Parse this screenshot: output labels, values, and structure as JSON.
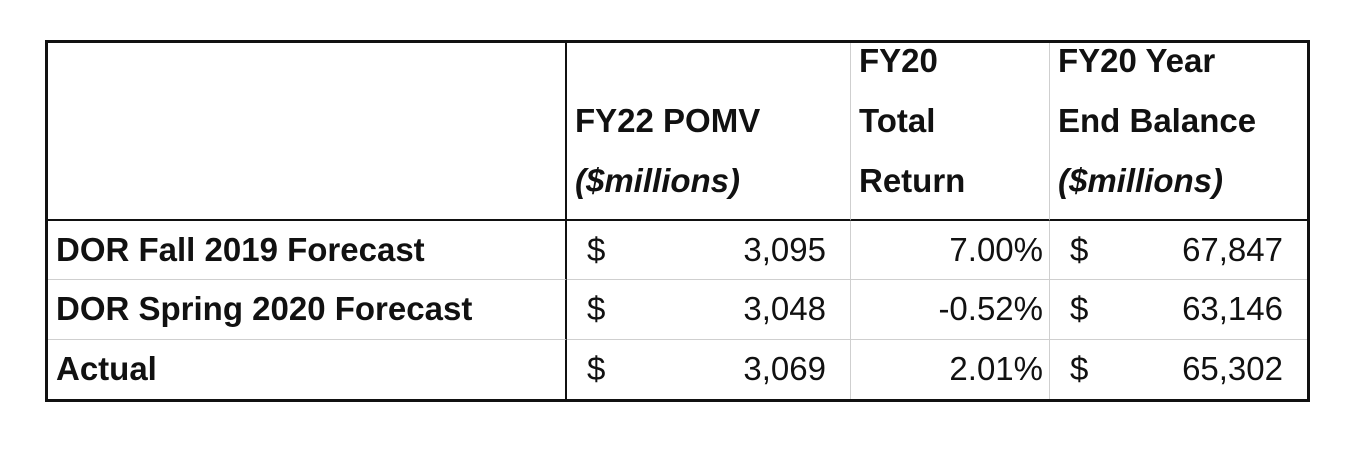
{
  "table": {
    "headers": {
      "col2_line1": "FY22 POMV",
      "col2_line2": "($millions)",
      "col3_line1": "FY20",
      "col3_line2": "Total",
      "col3_line3": "Return",
      "col4_line1": "FY20 Year",
      "col4_line2": "End Balance",
      "col4_line3": "($millions)"
    },
    "rows": [
      {
        "label": "DOR Fall 2019 Forecast",
        "pomv_currency": "$",
        "pomv_value": "3,095",
        "total_return": "7.00%",
        "balance_currency": "$",
        "balance_value": "67,847"
      },
      {
        "label": "DOR Spring 2020 Forecast",
        "pomv_currency": "$",
        "pomv_value": "3,048",
        "total_return": "-0.52%",
        "balance_currency": "$",
        "balance_value": "63,146"
      },
      {
        "label": "Actual",
        "pomv_currency": "$",
        "pomv_value": "3,069",
        "total_return": "2.01%",
        "balance_currency": "$",
        "balance_value": "65,302"
      }
    ]
  }
}
